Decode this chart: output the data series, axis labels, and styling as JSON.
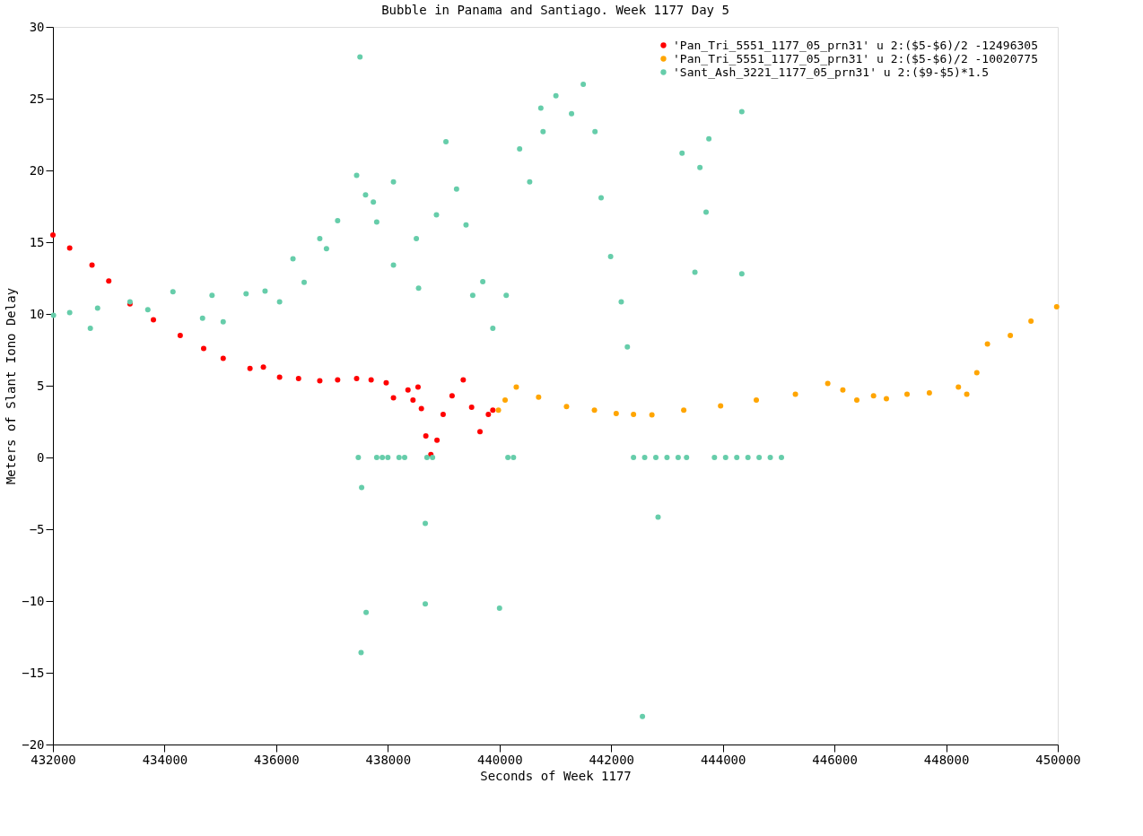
{
  "chart_data": {
    "type": "scatter",
    "title": "Bubble in Panama and Santiago. Week 1177 Day 5",
    "xlabel": "Seconds of Week 1177",
    "ylabel": "Meters of Slant Iono Delay",
    "xlim": [
      432000,
      450000
    ],
    "xticks": [
      432000,
      434000,
      436000,
      438000,
      440000,
      442000,
      444000,
      446000,
      448000,
      450000
    ],
    "ylim": [
      -20,
      30
    ],
    "yticks": [
      -20,
      -15,
      -10,
      -5,
      0,
      5,
      10,
      15,
      20,
      25,
      30
    ],
    "grid": false,
    "legend": "top right",
    "marker": "circle",
    "series": [
      {
        "name": "'Pan_Tri_5551_1177_05_prn31' u 2:($5-$6)/2 -12496305",
        "color": "#ff0000",
        "x": [
          432000,
          432300,
          432700,
          433000,
          433380,
          433800,
          434280,
          434700,
          435050,
          435530,
          435770,
          436060,
          436400,
          436780,
          437100,
          437440,
          437700,
          437970,
          438100,
          438360,
          438450,
          438540,
          438600,
          438680,
          438770,
          438880,
          438990,
          439150,
          439350,
          439500,
          439650,
          439800,
          439880
        ],
        "values": [
          15.5,
          14.6,
          13.4,
          12.3,
          10.7,
          9.6,
          8.5,
          7.6,
          6.9,
          6.2,
          6.3,
          5.6,
          5.5,
          5.35,
          5.4,
          5.5,
          5.4,
          5.2,
          4.15,
          4.7,
          4.0,
          4.9,
          3.4,
          1.5,
          0.2,
          1.2,
          3.0,
          4.3,
          5.4,
          3.5,
          1.8,
          3.0,
          3.3
        ]
      },
      {
        "name": "'Pan_Tri_5551_1177_05_prn31' u 2:($5-$6)/2  -10020775",
        "color": "#ffa500",
        "x": [
          439980,
          440100,
          440300,
          440700,
          441200,
          441700,
          442090,
          442400,
          442730,
          443300,
          443960,
          444600,
          445300,
          445880,
          446150,
          446400,
          446700,
          446930,
          447300,
          447700,
          448220,
          448370,
          448550,
          448740,
          449150,
          449520,
          449980
        ],
        "values": [
          3.3,
          4.0,
          4.9,
          4.2,
          3.55,
          3.3,
          3.07,
          3.0,
          2.97,
          3.3,
          3.6,
          4.0,
          4.4,
          5.15,
          4.7,
          4.0,
          4.3,
          4.1,
          4.4,
          4.5,
          4.9,
          4.4,
          5.9,
          7.9,
          8.5,
          9.5,
          10.5
        ]
      },
      {
        "name": "'Sant_Ash_3221_1177_05_prn31' u 2:($9-$5)*1.5",
        "color": "#66cdaa",
        "x": [
          432010,
          432300,
          432670,
          432800,
          433380,
          433700,
          434150,
          434680,
          434850,
          435050,
          435460,
          435800,
          436060,
          436300,
          436500,
          436780,
          436900,
          437100,
          437440,
          437600,
          437740,
          437800,
          438100,
          438100,
          438510,
          438550,
          438870,
          439040,
          439230,
          439400,
          439520,
          439700,
          439880,
          440120,
          440360,
          440540,
          440780,
          440740,
          441010,
          441290,
          441500,
          441710,
          441820,
          441990,
          442180,
          442290,
          443270,
          443590,
          443700,
          443750,
          443500,
          437500,
          444340,
          444340,
          437610,
          437520,
          438670,
          440000,
          442560,
          442840,
          438670,
          437530,
          437470,
          437800,
          437900,
          438000,
          438200,
          438300,
          438700,
          438800,
          440150,
          440250,
          442400,
          442600,
          442800,
          443000,
          443200,
          443350,
          443850,
          444050,
          444250,
          444450,
          444650,
          444850,
          445050
        ],
        "values": [
          9.9,
          10.1,
          9.0,
          10.4,
          10.85,
          10.3,
          11.55,
          9.7,
          11.3,
          9.45,
          11.4,
          11.6,
          10.85,
          13.85,
          12.2,
          15.25,
          14.55,
          16.5,
          19.65,
          18.3,
          17.8,
          16.4,
          19.2,
          13.4,
          15.25,
          11.8,
          16.9,
          22.0,
          18.7,
          16.2,
          11.3,
          12.25,
          9.0,
          11.3,
          21.5,
          19.2,
          22.7,
          24.35,
          25.2,
          23.95,
          26.0,
          22.7,
          18.1,
          14.0,
          10.85,
          7.7,
          21.2,
          20.2,
          17.1,
          22.2,
          12.9,
          27.9,
          24.1,
          12.8,
          -10.8,
          -13.6,
          -10.2,
          -10.5,
          -18.05,
          -4.15,
          -4.6,
          -2.1,
          0,
          0,
          0,
          0,
          0,
          0,
          0,
          0,
          0,
          0,
          0,
          0,
          0,
          0,
          0,
          0,
          0,
          0,
          0,
          0,
          0,
          0,
          0
        ]
      }
    ]
  }
}
